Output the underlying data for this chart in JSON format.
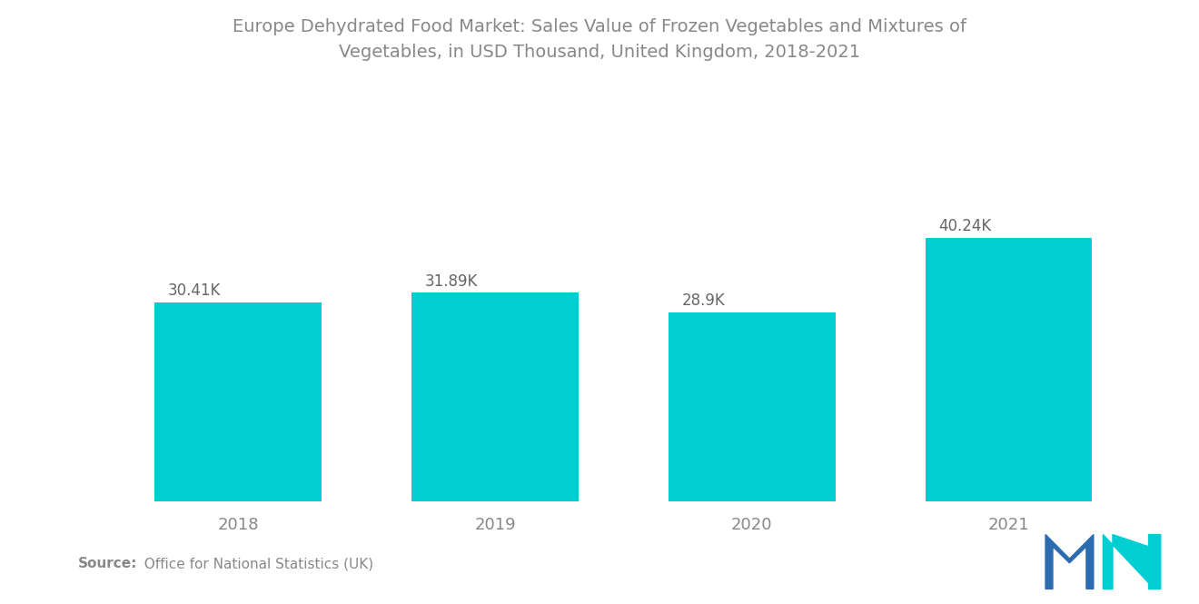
{
  "title_line1": "Europe Dehydrated Food Market: Sales Value of Frozen Vegetables and Mixtures of",
  "title_line2": "Vegetables, in USD Thousand, United Kingdom, 2018-2021",
  "categories": [
    "2018",
    "2019",
    "2020",
    "2021"
  ],
  "values": [
    30.41,
    31.89,
    28.9,
    40.24
  ],
  "labels": [
    "30.41K",
    "31.89K",
    "28.9K",
    "40.24K"
  ],
  "bar_color": "#00CED1",
  "background_color": "#FFFFFF",
  "title_color": "#888888",
  "label_color": "#666666",
  "tick_color": "#888888",
  "source_bold": "Source:",
  "source_normal": "  Office for National Statistics (UK)",
  "ylim": [
    0,
    48
  ],
  "bar_width": 0.65,
  "logo_m_color": "#2B6CB0",
  "logo_n_color": "#00CED1"
}
